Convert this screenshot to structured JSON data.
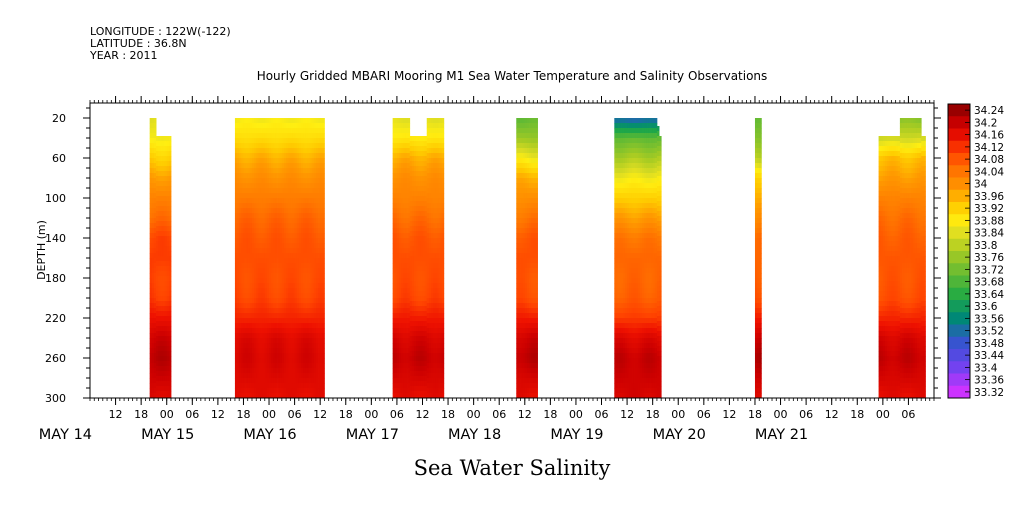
{
  "header": {
    "longitude": "LONGITUDE : 122W(-122)",
    "latitude": "LATITUDE : 36.8N",
    "year": "YEAR : 2011",
    "title": "Hourly Gridded MBARI Mooring M1 Sea Water Temperature and Salinity Observations"
  },
  "chart_data": {
    "type": "heatmap",
    "title": "Hourly Gridded MBARI Mooring M1 Sea Water Temperature and Salinity Observations",
    "xlabel": "Sea Water Salinity",
    "ylabel": "DEPTH (m)",
    "x_unit": "hours since MAY 14 00:00 (2011)",
    "xlim": [
      6,
      204
    ],
    "ylim": [
      300,
      5
    ],
    "y_ticks": [
      20,
      60,
      100,
      140,
      180,
      220,
      260,
      300
    ],
    "x_hour_ticks": [
      "12",
      "18",
      "00",
      "06",
      "12",
      "18",
      "00",
      "06",
      "12",
      "18",
      "00",
      "06",
      "12",
      "18",
      "00",
      "06",
      "12",
      "18",
      "00",
      "06",
      "12",
      "18",
      "00",
      "06",
      "12",
      "18",
      "00",
      "06",
      "12",
      "18",
      "00",
      "06"
    ],
    "x_date_labels": [
      "MAY 14",
      "MAY 15",
      "MAY 16",
      "MAY 17",
      "MAY 18",
      "MAY 19",
      "MAY 20",
      "MAY 21"
    ],
    "colorbar": {
      "min": 33.32,
      "max": 34.24,
      "labels": [
        "34.24",
        "34.2",
        "34.16",
        "34.12",
        "34.08",
        "34.04",
        "34",
        "33.96",
        "33.92",
        "33.88",
        "33.84",
        "33.8",
        "33.76",
        "33.72",
        "33.68",
        "33.64",
        "33.6",
        "33.56",
        "33.52",
        "33.48",
        "33.44",
        "33.4",
        "33.36",
        "33.32"
      ]
    },
    "profile_depths": [
      20,
      40,
      60,
      80,
      100,
      120,
      140,
      160,
      180,
      200,
      220,
      240,
      260,
      280,
      300
    ],
    "segments": [
      {
        "t0": 20,
        "t1": 25,
        "top": 38,
        "steps": [
          {
            "t0": 20,
            "t1": 21.5,
            "top": 20
          }
        ],
        "profile": [
          33.84,
          33.86,
          33.92,
          33.98,
          34.02,
          34.05,
          34.1,
          34.11,
          34.1,
          34.11,
          34.15,
          34.19,
          34.21,
          34.19,
          34.17
        ]
      },
      {
        "t0": 40,
        "t1": 61,
        "top": 20,
        "profile": [
          33.86,
          33.9,
          33.96,
          34.0,
          34.03,
          34.06,
          34.08,
          34.09,
          34.09,
          34.1,
          34.13,
          34.17,
          34.18,
          34.17,
          34.16
        ]
      },
      {
        "t0": 77,
        "t1": 89,
        "top": 20,
        "notch": {
          "t0": 81,
          "t1": 85,
          "top": 38
        },
        "profile": [
          33.84,
          33.88,
          33.96,
          34.0,
          34.02,
          34.05,
          34.08,
          34.09,
          34.09,
          34.1,
          34.14,
          34.18,
          34.2,
          34.18,
          34.16
        ]
      },
      {
        "t0": 106,
        "t1": 111,
        "top": 20,
        "profile": [
          33.7,
          33.76,
          33.86,
          33.96,
          34.0,
          34.04,
          34.08,
          34.09,
          34.08,
          34.09,
          34.14,
          34.19,
          34.21,
          34.18,
          34.16
        ]
      },
      {
        "t0": 129,
        "t1": 140,
        "top": 38,
        "steps": [
          {
            "t0": 129,
            "t1": 139,
            "top": 20
          },
          {
            "t0": 139,
            "t1": 139.5,
            "top": 28
          }
        ],
        "profile": [
          33.5,
          33.7,
          33.78,
          33.86,
          33.92,
          33.98,
          34.04,
          34.06,
          34.06,
          34.07,
          34.11,
          34.17,
          34.2,
          34.19,
          34.18
        ]
      },
      {
        "t0": 162,
        "t1": 163.5,
        "top": 20,
        "profile": [
          33.7,
          33.74,
          33.8,
          33.92,
          33.96,
          34.0,
          34.05,
          34.06,
          34.07,
          34.09,
          34.14,
          34.19,
          34.22,
          34.19,
          34.17
        ]
      },
      {
        "t0": 191,
        "t1": 202,
        "top": 38,
        "steps": [
          {
            "t0": 196,
            "t1": 201,
            "top": 20
          }
        ],
        "profile": [
          33.74,
          33.82,
          33.94,
          33.98,
          34.02,
          34.05,
          34.07,
          34.08,
          34.08,
          34.09,
          34.13,
          34.18,
          34.2,
          34.18,
          34.16
        ]
      }
    ]
  }
}
